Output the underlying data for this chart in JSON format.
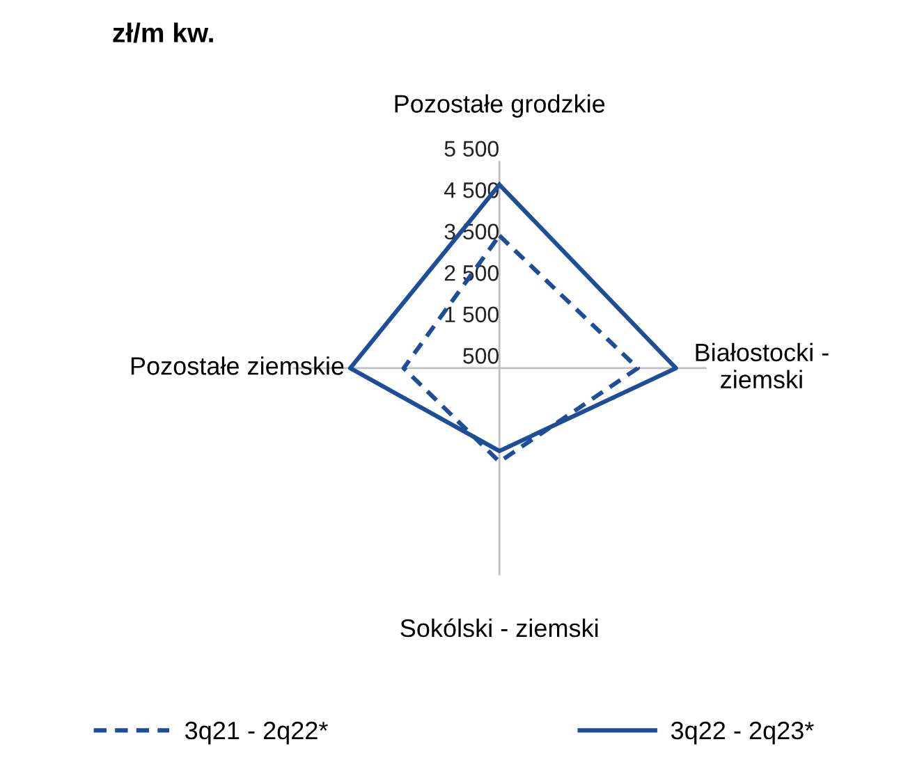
{
  "chart_data": {
    "type": "radar",
    "ylabel": "zł/m kw.",
    "categories": [
      "Pozostałe grodzkie",
      "Białostocki - ziemski",
      "Sokólski - ziemski",
      "Pozostałe ziemskie"
    ],
    "series": [
      {
        "name": "3q21 - 2q22*",
        "color": "#1f4e99",
        "line_style": "dashed",
        "values": [
          3700,
          3840,
          2760,
          2810
        ]
      },
      {
        "name": "3q22 - 2q23*",
        "color": "#1f4e99",
        "line_style": "solid",
        "values": [
          4930,
          4760,
          2500,
          4100
        ]
      }
    ],
    "ylim": [
      500,
      5500
    ],
    "yticks": [
      {
        "value": 500,
        "label": "500"
      },
      {
        "value": 1500,
        "label": "1 500"
      },
      {
        "value": 2500,
        "label": "2 500"
      },
      {
        "value": 3500,
        "label": "3 500"
      },
      {
        "value": 4500,
        "label": "4 500"
      },
      {
        "value": 5500,
        "label": "5 500"
      }
    ],
    "grid": "x",
    "legend": "bottom",
    "marker": "none"
  }
}
